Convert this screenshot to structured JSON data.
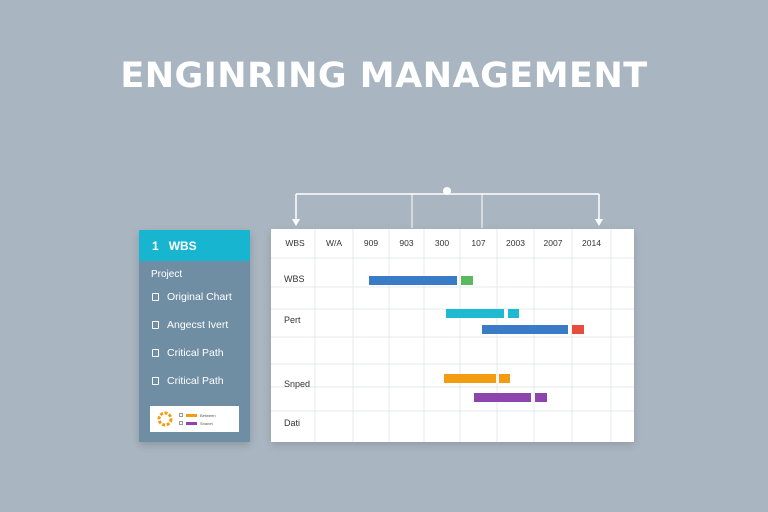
{
  "title": "ENGINRING MANAGEMENT",
  "sidebar": {
    "header_num": "1",
    "header_label": "WBS",
    "section": "Project",
    "items": [
      {
        "label": "Original Chart",
        "icon": "document-icon"
      },
      {
        "label": "Angecst Ivert",
        "icon": "image-icon"
      },
      {
        "label": "Critical Path",
        "icon": "path-icon"
      },
      {
        "label": "Critical Path",
        "icon": "calendar-icon"
      }
    ],
    "legend": [
      {
        "label": "Between",
        "color": "#f39c12"
      },
      {
        "label": "Snanet",
        "color": "#8e44ad"
      }
    ]
  },
  "gantt": {
    "columns": [
      "WBS",
      "W/A",
      "909",
      "903",
      "300",
      "107",
      "2003",
      "2007",
      "2014"
    ],
    "rows": [
      "WBS",
      "Pert",
      "Snped",
      "Dati"
    ],
    "tasks": [
      {
        "row": 0,
        "color": "#3a7bc8",
        "end_color": "#5cb85c"
      },
      {
        "row": 1,
        "color": "#1fbad1",
        "end_color": "#1fbad1"
      },
      {
        "row": 1,
        "color": "#3a7bc8",
        "end_color": "#e74c3c"
      },
      {
        "row": 2,
        "color": "#f39c12",
        "end_color": "#f39c12"
      },
      {
        "row": 2,
        "color": "#8e44ad",
        "end_color": "#8e44ad"
      }
    ]
  },
  "colors": {
    "background": "#a9b6c1",
    "accent": "#18b5d0",
    "sidebar": "#6f8ea3"
  }
}
